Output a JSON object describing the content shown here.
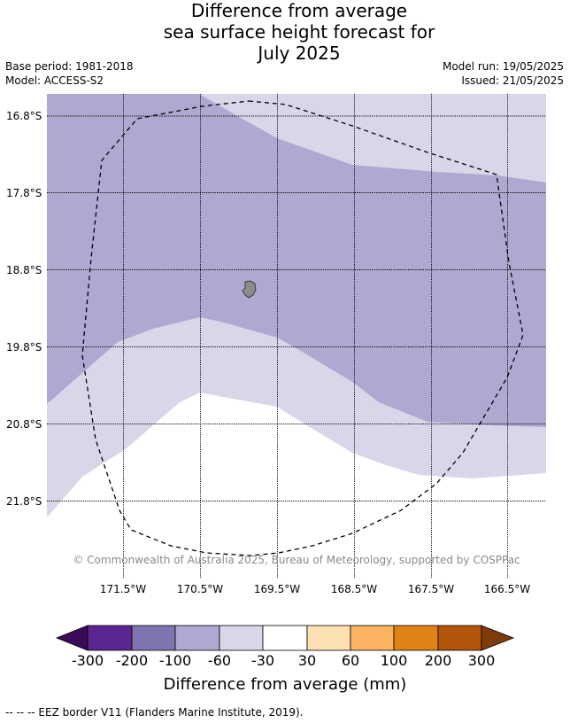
{
  "title": {
    "line1": "Difference from average",
    "line2": "sea surface height forecast for",
    "line3": "July 2025"
  },
  "meta": {
    "base_period": "Base period: 1981-2018",
    "model": "Model: ACCESS-S2",
    "model_run": "Model run: 19/05/2025",
    "issued": "Issued: 21/05/2025"
  },
  "map": {
    "latitude_labels": [
      "16.8°S",
      "17.8°S",
      "18.8°S",
      "19.8°S",
      "20.8°S",
      "21.8°S"
    ],
    "longitude_labels": [
      "171.5°W",
      "170.5°W",
      "169.5°W",
      "168.5°W",
      "167.5°W",
      "166.5°W"
    ],
    "copyright": "© Commonwealth of Australia 2025, Bureau of Meteorology, supported by COSPPac",
    "colors": {
      "band_-200_-100": "#7f72ae",
      "band_-100_-60": "#b0a8d0",
      "band_-60_-30": "#d8d7e9",
      "band_-30_30": "#ffffff",
      "island": "#8c8c8c"
    }
  },
  "colorbar": {
    "ticks": [
      "-300",
      "-200",
      "-100",
      "-60",
      "-30",
      "30",
      "60",
      "100",
      "200",
      "300"
    ],
    "label": "Difference from average (mm)",
    "colors": [
      "#3d0a5a",
      "#5c2690",
      "#8074b0",
      "#b0a8d0",
      "#d8d8ea",
      "#ffffff",
      "#fde0b4",
      "#fbb560",
      "#e08316",
      "#b45408",
      "#7f3c0a"
    ]
  },
  "footnote": "--  --  -- EEZ border V11 (Flanders Marine Institute, 2019)."
}
